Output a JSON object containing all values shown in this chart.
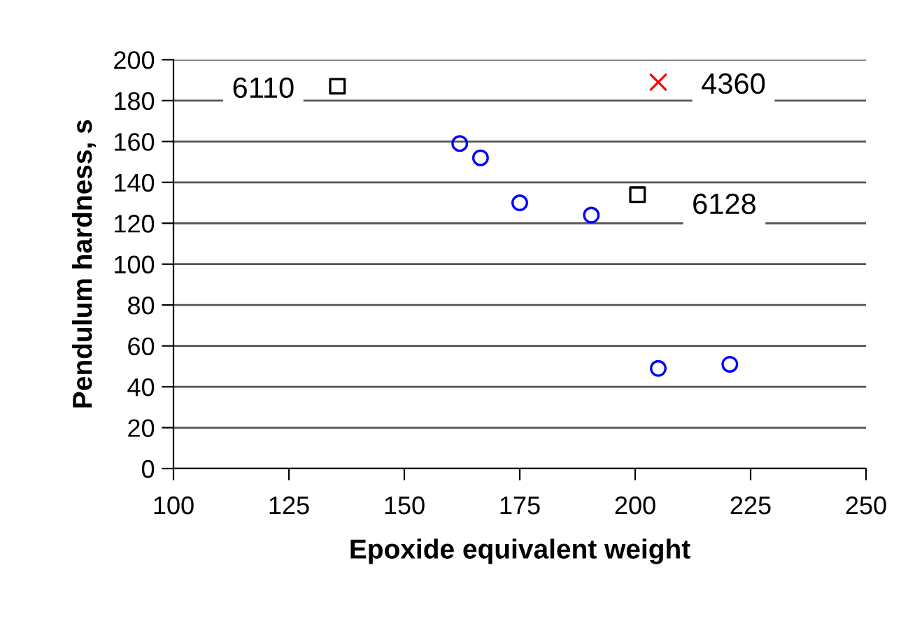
{
  "chart_data": {
    "type": "scatter",
    "xlabel": "Epoxide equivalent weight",
    "ylabel": "Pendulum hardness, s",
    "xlim": [
      100,
      250
    ],
    "xticks": [
      100,
      125,
      150,
      175,
      200,
      225,
      250
    ],
    "ylim": [
      0,
      200
    ],
    "yticks": [
      0,
      20,
      40,
      60,
      80,
      100,
      120,
      140,
      160,
      180,
      200
    ],
    "grid": "y",
    "series": [
      {
        "color": "#0000ff",
        "marker": "circle",
        "x": [
          162,
          166.5,
          175,
          190.5,
          205,
          220.5
        ],
        "values": [
          159,
          152,
          130,
          124,
          49,
          51
        ]
      },
      {
        "color": "#000000",
        "marker": "square",
        "x": [
          135.5,
          200.5
        ],
        "values": [
          187,
          134
        ]
      },
      {
        "color": "#ff0000",
        "marker": "cross",
        "x": [
          205
        ],
        "values": [
          189
        ]
      }
    ],
    "annotations": [
      {
        "text": "6110",
        "x": 135.5,
        "y": 187
      },
      {
        "text": "4360",
        "x": 205,
        "y": 189
      },
      {
        "text": "6128",
        "x": 200.5,
        "y": 134
      }
    ]
  }
}
